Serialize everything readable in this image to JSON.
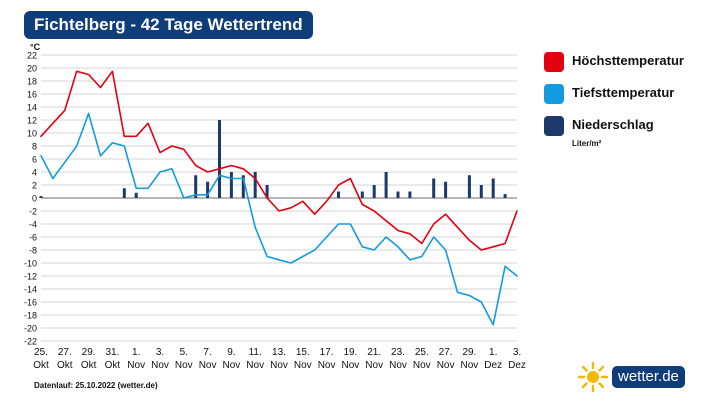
{
  "header": {
    "title": "Fichtelberg - 42 Tage Wettertrend"
  },
  "legend": [
    {
      "label": "Höchsttemperatur",
      "color": "#e3000f"
    },
    {
      "label": "Tiefsttemperatur",
      "color": "#139be0"
    },
    {
      "label": "Niederschlag",
      "color": "#1b3a6b"
    }
  ],
  "precip_unit": "Liter/m²",
  "footnote": "Datenlauf: 25.10.2022 (wetter.de)",
  "brand": {
    "name": "wetter",
    "suffix": ".de",
    "icon": "sun-icon"
  },
  "chart_data": {
    "type": "line",
    "ylabel": "°C",
    "ylim": [
      -22,
      22
    ],
    "y_ticks": [
      22,
      20,
      18,
      16,
      14,
      12,
      10,
      8,
      6,
      4,
      2,
      0,
      -2,
      -4,
      -6,
      -8,
      -10,
      -12,
      -14,
      -16,
      -18,
      -20,
      -22
    ],
    "x_tick_labels": [
      {
        "day": "25.",
        "month": "Okt"
      },
      {
        "day": "27.",
        "month": "Okt"
      },
      {
        "day": "29.",
        "month": "Okt"
      },
      {
        "day": "31.",
        "month": "Okt"
      },
      {
        "day": "1.",
        "month": "Nov"
      },
      {
        "day": "3.",
        "month": "Nov"
      },
      {
        "day": "5.",
        "month": "Nov"
      },
      {
        "day": "7.",
        "month": "Nov"
      },
      {
        "day": "9.",
        "month": "Nov"
      },
      {
        "day": "11.",
        "month": "Nov"
      },
      {
        "day": "13.",
        "month": "Nov"
      },
      {
        "day": "15.",
        "month": "Nov"
      },
      {
        "day": "17.",
        "month": "Nov"
      },
      {
        "day": "19.",
        "month": "Nov"
      },
      {
        "day": "21.",
        "month": "Nov"
      },
      {
        "day": "23.",
        "month": "Nov"
      },
      {
        "day": "25.",
        "month": "Nov"
      },
      {
        "day": "27.",
        "month": "Nov"
      },
      {
        "day": "29.",
        "month": "Nov"
      },
      {
        "day": "1.",
        "month": "Dez"
      },
      {
        "day": "3.",
        "month": "Dez"
      }
    ],
    "series": [
      {
        "name": "Höchsttemperatur",
        "x": [
          "25.10.",
          "26.10.",
          "27.10.",
          "28.10.",
          "29.10.",
          "30.10.",
          "31.10.",
          "01.11.",
          "02.11.",
          "03.11.",
          "04.11.",
          "05.11.",
          "06.11.",
          "07.11.",
          "08.11.",
          "09.11.",
          "10.11.",
          "11.11.",
          "12.11.",
          "13.11.",
          "14.11.",
          "15.11.",
          "16.11.",
          "17.11.",
          "18.11.",
          "19.11.",
          "20.11.",
          "21.11.",
          "22.11.",
          "23.11.",
          "24.11.",
          "25.11.",
          "26.11.",
          "27.11.",
          "28.11.",
          "29.11.",
          "30.11.",
          "01.12.",
          "02.12.",
          "03.12.",
          "04.12."
        ],
        "values": [
          9.5,
          11.5,
          13.5,
          19.5,
          19.0,
          17.0,
          19.5,
          9.5,
          9.5,
          11.5,
          7.0,
          8.0,
          7.5,
          5.0,
          4.0,
          4.5,
          5.0,
          4.5,
          3.0,
          0.0,
          -2.0,
          -1.5,
          -0.5,
          -2.5,
          -0.5,
          2.0,
          3.0,
          -1.0,
          -2.0,
          -3.5,
          -5.0,
          -5.5,
          -7.0,
          -4.0,
          -2.5,
          -4.5,
          -6.5,
          -8.0,
          -7.5,
          -7.0,
          -2.0
        ]
      },
      {
        "name": "Tiefsttemperatur",
        "x": [
          "25.10.",
          "26.10.",
          "27.10.",
          "28.10.",
          "29.10.",
          "30.10.",
          "31.10.",
          "01.11.",
          "02.11.",
          "03.11.",
          "04.11.",
          "05.11.",
          "06.11.",
          "07.11.",
          "08.11.",
          "09.11.",
          "10.11.",
          "11.11.",
          "12.11.",
          "13.11.",
          "14.11.",
          "15.11.",
          "16.11.",
          "17.11.",
          "18.11.",
          "19.11.",
          "20.11.",
          "21.11.",
          "22.11.",
          "23.11.",
          "24.11.",
          "25.11.",
          "26.11.",
          "27.11.",
          "28.11.",
          "29.11.",
          "30.11.",
          "01.12.",
          "02.12.",
          "03.12.",
          "04.12."
        ],
        "values": [
          6.5,
          3.0,
          5.5,
          8.0,
          13.0,
          6.5,
          8.5,
          8.0,
          1.5,
          1.5,
          4.0,
          4.5,
          0.0,
          0.5,
          0.5,
          3.5,
          3.0,
          3.0,
          -4.5,
          -9.0,
          -9.5,
          -10.0,
          -9.0,
          -8.0,
          -6.0,
          -4.0,
          -4.0,
          -7.5,
          -8.0,
          -6.0,
          -7.5,
          -9.5,
          -9.0,
          -6.0,
          -8.0,
          -14.5,
          -15.0,
          -16.0,
          -19.5,
          -10.5,
          -12.0
        ]
      },
      {
        "name": "Niederschlag",
        "unit": "Liter/m²",
        "x": [
          "25.10.",
          "01.11.",
          "02.11.",
          "07.11.",
          "08.11.",
          "09.11.",
          "10.11.",
          "11.11.",
          "12.11.",
          "13.11.",
          "19.11.",
          "21.11.",
          "22.11.",
          "23.11.",
          "24.11.",
          "25.11.",
          "27.11.",
          "28.11.",
          "30.11.",
          "01.12.",
          "02.12.",
          "03.12."
        ],
        "values": [
          0.3,
          1.5,
          0.8,
          3.5,
          2.5,
          12.0,
          4.0,
          3.5,
          4.0,
          2.0,
          1.0,
          1.0,
          2.0,
          4.0,
          1.0,
          1.0,
          3.0,
          2.5,
          3.5,
          2.0,
          3.0,
          0.6
        ]
      }
    ]
  }
}
